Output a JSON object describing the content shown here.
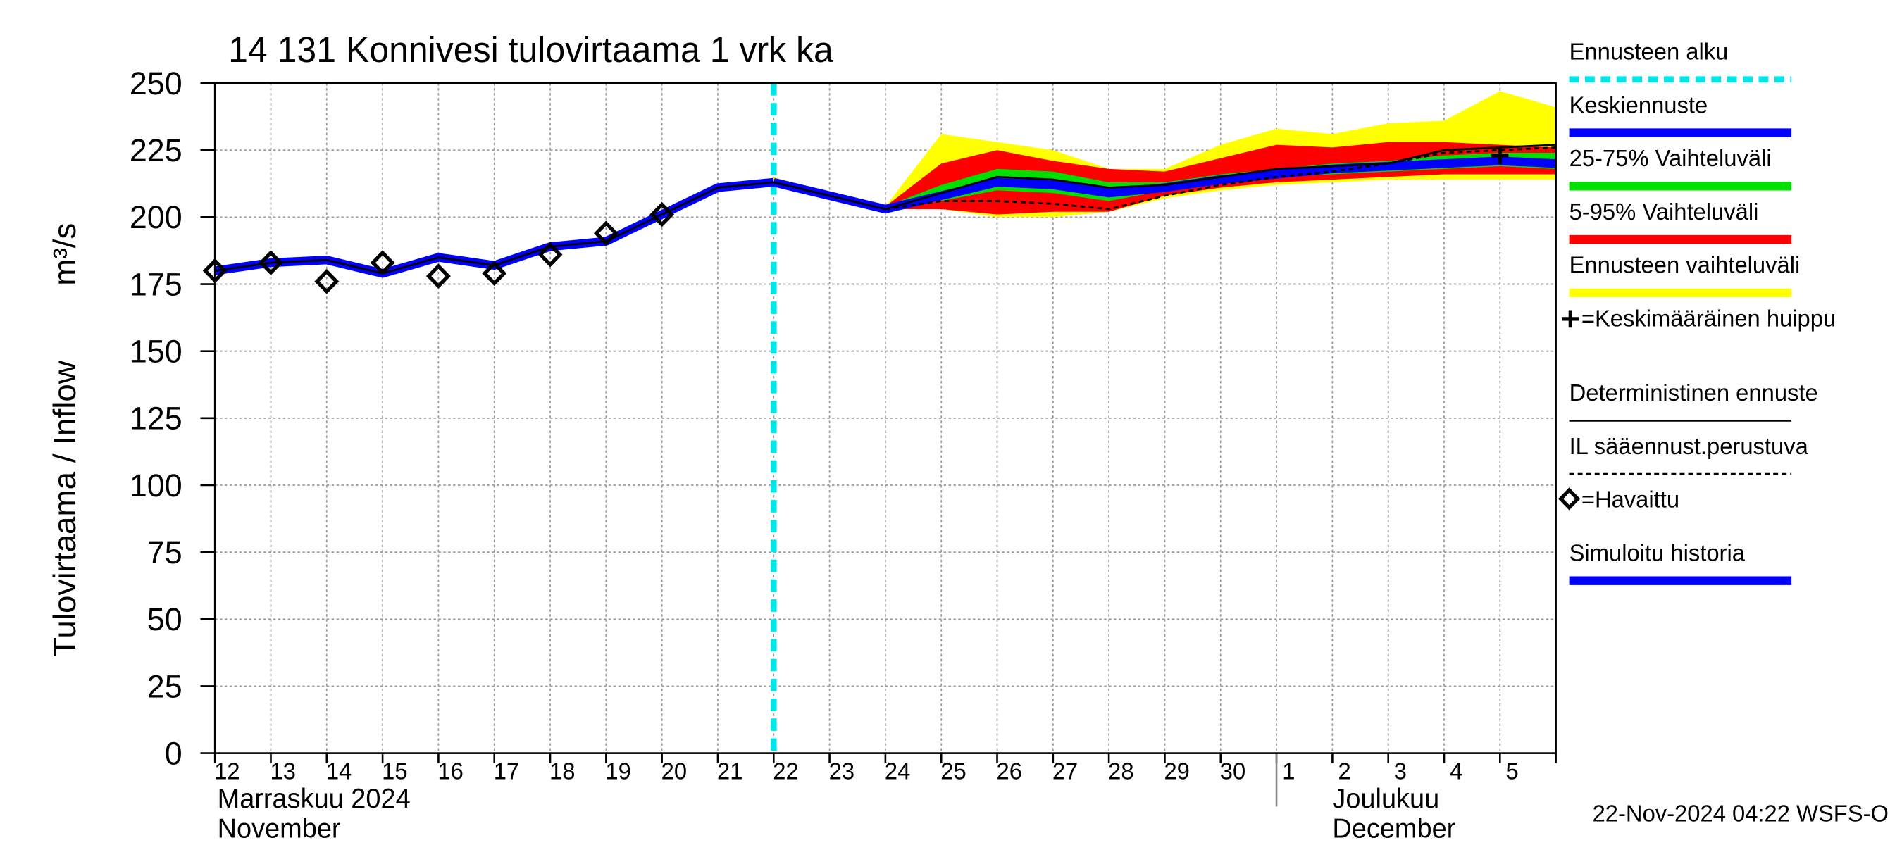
{
  "chart_data": {
    "type": "band-line",
    "title": "14 131 Konnivesi tulovirtaama 1 vrk ka",
    "y_label": "Tulovirtaama / Inflow",
    "y_unit": "m³/s",
    "categories": [
      "12",
      "13",
      "14",
      "15",
      "16",
      "17",
      "18",
      "19",
      "20",
      "21",
      "22",
      "23",
      "24",
      "25",
      "26",
      "27",
      "28",
      "29",
      "30",
      "1",
      "2",
      "3",
      "4",
      "5",
      null
    ],
    "months": [
      {
        "labels": [
          "Marraskuu 2024",
          "November"
        ]
      },
      {
        "labels": [
          "Joulukuu",
          "December"
        ]
      }
    ],
    "ylim": [
      0,
      250
    ],
    "yticks": [
      0,
      25,
      50,
      75,
      100,
      125,
      150,
      175,
      200,
      225,
      250
    ],
    "grid": true,
    "footer": "22-Nov-2024 04:22 WSFS-O",
    "series": [
      {
        "name": "Ennusteen alku",
        "color": "#00e5e5",
        "kind": "vline"
      },
      {
        "name": "Keskiennuste",
        "color": "#0000ff",
        "kind": "thick-line",
        "values": [
          null,
          null,
          null,
          null,
          null,
          null,
          null,
          null,
          null,
          null,
          213,
          208,
          203,
          208,
          213,
          212,
          209,
          211,
          214,
          216,
          218,
          219,
          220,
          221,
          220
        ]
      },
      {
        "name": "25-75% Vaihteluväli",
        "color": "#00e000",
        "kind": "band",
        "low": [
          null,
          null,
          null,
          null,
          null,
          null,
          null,
          null,
          null,
          null,
          213,
          208,
          203,
          206,
          210,
          209,
          206,
          210,
          213,
          215,
          216,
          217,
          218,
          219,
          218
        ],
        "high": [
          null,
          null,
          null,
          null,
          null,
          null,
          null,
          null,
          null,
          null,
          213,
          208,
          204,
          212,
          218,
          217,
          213,
          213,
          216,
          218,
          220,
          221,
          223,
          224,
          224
        ]
      },
      {
        "name": "5-95% Vaihteluväli",
        "color": "#ff0000",
        "kind": "band",
        "low": [
          null,
          null,
          null,
          null,
          null,
          null,
          null,
          null,
          null,
          null,
          213,
          208,
          203,
          203,
          201,
          202,
          202,
          208,
          211,
          213,
          214,
          215,
          216,
          216,
          216
        ],
        "high": [
          null,
          null,
          null,
          null,
          null,
          null,
          null,
          null,
          null,
          null,
          213,
          208,
          204,
          220,
          225,
          221,
          218,
          217,
          222,
          227,
          226,
          228,
          228,
          227,
          226
        ]
      },
      {
        "name": "Ennusteen vaihteluväli",
        "color": "#ffff00",
        "kind": "band",
        "low": [
          null,
          null,
          null,
          null,
          null,
          null,
          null,
          null,
          null,
          null,
          213,
          208,
          203,
          203,
          200,
          200,
          202,
          207,
          210,
          212,
          213,
          214,
          214,
          214,
          214
        ],
        "high": [
          null,
          null,
          null,
          null,
          null,
          null,
          null,
          null,
          null,
          null,
          215,
          209,
          204,
          231,
          228,
          225,
          218,
          218,
          227,
          233,
          231,
          235,
          236,
          247,
          241
        ]
      },
      {
        "name": "=Keskimääräinen huippu",
        "color": "#000000",
        "kind": "plus",
        "values": [
          null,
          null,
          null,
          null,
          null,
          null,
          null,
          null,
          null,
          null,
          null,
          null,
          null,
          null,
          null,
          null,
          null,
          null,
          null,
          null,
          null,
          null,
          null,
          223,
          null
        ]
      },
      {
        "name": "Deterministinen ennuste",
        "color": "#000000",
        "kind": "line",
        "values": [
          180,
          183,
          184,
          179,
          185,
          182,
          189,
          191,
          201,
          211,
          213,
          208,
          203,
          209,
          215,
          214,
          211,
          212,
          215,
          218,
          219,
          220,
          225,
          226,
          227
        ]
      },
      {
        "name": "IL sääennust.perustuva",
        "color": "#000000",
        "kind": "dashed-line",
        "values": [
          null,
          null,
          null,
          null,
          null,
          null,
          null,
          null,
          null,
          null,
          null,
          null,
          203,
          206,
          206,
          205,
          203,
          208,
          212,
          215,
          217,
          220,
          224,
          225,
          226
        ]
      },
      {
        "name": "=Havaittu",
        "color": "#000000",
        "kind": "diamond",
        "values": [
          180,
          183,
          176,
          183,
          178,
          179,
          186,
          194,
          201,
          null,
          null,
          null,
          null,
          null,
          null,
          null,
          null,
          null,
          null,
          null,
          null,
          null,
          null,
          null,
          null
        ]
      },
      {
        "name": "Simuloitu historia",
        "color": "#0000ff",
        "kind": "thick-line",
        "values": [
          180,
          183,
          184,
          179,
          185,
          182,
          189,
          191,
          201,
          211,
          213,
          null,
          null,
          null,
          null,
          null,
          null,
          null,
          null,
          null,
          null,
          null,
          null,
          null,
          null
        ]
      }
    ]
  }
}
